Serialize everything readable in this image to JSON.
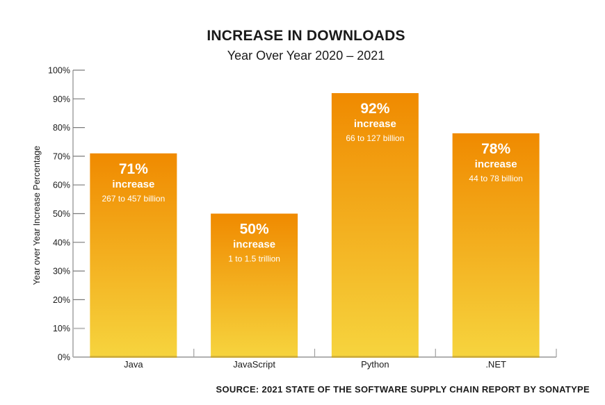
{
  "chart_data": {
    "type": "bar",
    "title": "INCREASE IN DOWNLOADS",
    "subtitle": "Year Over Year 2020 – 2021",
    "xlabel": "",
    "ylabel": "Year over Year Increase Percentage",
    "ylim": [
      0,
      100
    ],
    "yticks": [
      0,
      10,
      20,
      30,
      40,
      50,
      60,
      70,
      80,
      90,
      100
    ],
    "ytick_suffix": "%",
    "grid": false,
    "categories": [
      "Java",
      "JavaScript",
      "Python",
      ".NET"
    ],
    "values": [
      71,
      50,
      92,
      78
    ],
    "annotations": [
      {
        "category": "Java",
        "percent_label": "71%",
        "word": "increase",
        "detail": "267 to 457 billion"
      },
      {
        "category": "JavaScript",
        "percent_label": "50%",
        "word": "increase",
        "detail": "1 to 1.5 trillion"
      },
      {
        "category": "Python",
        "percent_label": "92%",
        "word": "increase",
        "detail": "66 to 127 billion"
      },
      {
        "category": ".NET",
        "percent_label": "78%",
        "word": "increase",
        "detail": "44 to 78 billion"
      }
    ],
    "colors": {
      "bar_top": "#F08A00",
      "bar_bottom": "#F6D43E",
      "axis": "#8a8a8a"
    },
    "source": "SOURCE: 2021 STATE OF THE SOFTWARE SUPPLY CHAIN REPORT BY SONATYPE"
  }
}
